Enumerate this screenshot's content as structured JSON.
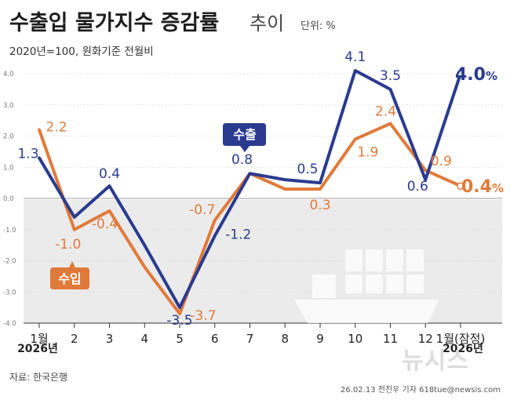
{
  "title": {
    "main": "수출입 물가지수 증감률",
    "sub": "추이",
    "unit": "단위: %"
  },
  "subtitle": "2020년=100, 원화기준 전월비",
  "chart_data": {
    "type": "line",
    "categories": [
      "1월",
      "2",
      "3",
      "4",
      "5",
      "6",
      "7",
      "8",
      "9",
      "10",
      "11",
      "12",
      "1월(잠정)"
    ],
    "year_labels": {
      "start": "2026년",
      "end": "2026년"
    },
    "y_ticks": [
      "4.0",
      "3.0",
      "2.0",
      "1.0",
      "0.0",
      "-1.0",
      "-2.0",
      "-3.0",
      "-4.0"
    ],
    "ylim": [
      -4.0,
      4.0
    ],
    "series": [
      {
        "name": "수출",
        "color": "#2a3b8f",
        "values": [
          1.3,
          -0.6,
          0.4,
          -1.5,
          -3.5,
          -1.2,
          0.8,
          0.6,
          0.5,
          4.1,
          3.5,
          0.6,
          4.0
        ],
        "labels": [
          "1.3",
          "",
          "0.4",
          "",
          "-3.5",
          "-1.2",
          "0.8",
          "",
          "0.5",
          "4.1",
          "3.5",
          "0.6",
          "4.0%"
        ]
      },
      {
        "name": "수입",
        "color": "#e07a3a",
        "values": [
          2.2,
          -1.0,
          -0.4,
          -2.2,
          -3.7,
          -0.7,
          0.8,
          0.3,
          0.3,
          1.9,
          2.4,
          0.9,
          0.4
        ],
        "labels": [
          "2.2",
          "-1.0",
          "-0.4",
          "",
          "-3.7",
          "-0.7",
          "",
          "",
          "0.3",
          "1.9",
          "2.4",
          "0.9",
          "0.4%"
        ]
      }
    ]
  },
  "source": "자료: 한국은행",
  "credit": "26.02.13 전진우 기자 618tue@newsis.com",
  "logo": "뉴시스"
}
